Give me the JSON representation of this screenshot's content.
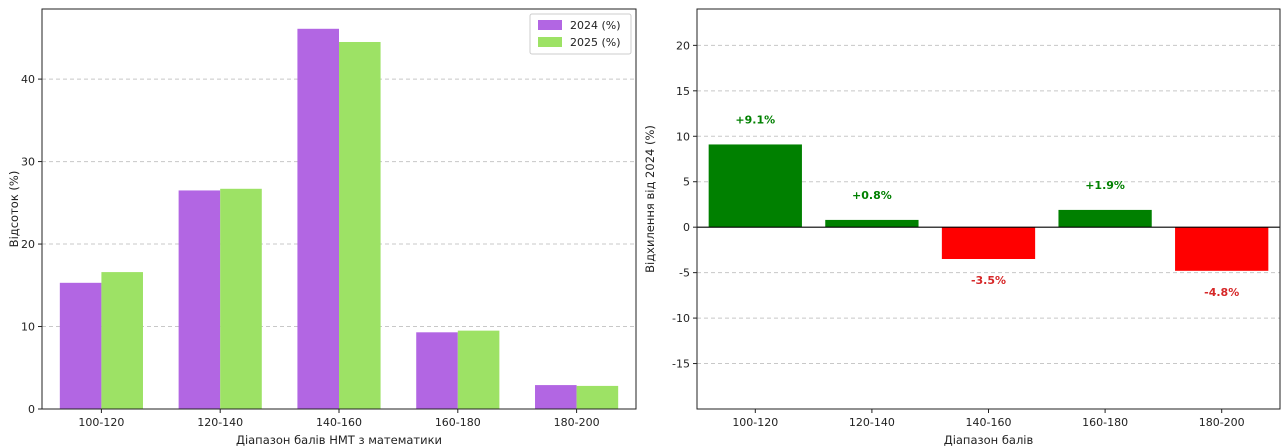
{
  "chart_data": [
    {
      "type": "bar",
      "categories": [
        "100-120",
        "120-140",
        "140-160",
        "160-180",
        "180-200"
      ],
      "series": [
        {
          "name": "2024 (%)",
          "values": [
            15.3,
            26.5,
            46.1,
            9.3,
            2.9
          ],
          "color": "#b266e3"
        },
        {
          "name": "2025 (%)",
          "values": [
            16.6,
            26.7,
            44.5,
            9.5,
            2.8
          ],
          "color": "#9de265"
        }
      ],
      "xlabel": "Діапазон балів НМТ з математики",
      "ylabel": "Відсоток (%)",
      "ylim": [
        0,
        48.5
      ],
      "yticks": [
        0,
        10,
        20,
        30,
        40
      ],
      "grid": true,
      "legend": "top-right"
    },
    {
      "type": "bar",
      "categories": [
        "100-120",
        "120-140",
        "140-160",
        "160-180",
        "180-200"
      ],
      "values": [
        9.1,
        0.8,
        -3.5,
        1.9,
        -4.8
      ],
      "labels": [
        "+9.1%",
        "+0.8%",
        "-3.5%",
        "+1.9%",
        "-4.8%"
      ],
      "colors": {
        "positive": "#008000",
        "negative": "#ff0000",
        "positive_label": "#008000",
        "negative_label": "#d62728"
      },
      "xlabel": "Діапазон балів",
      "ylabel": "Відхилення від 2024 (%)",
      "ylim": [
        -20,
        24
      ],
      "yticks": [
        -15,
        -10,
        -5,
        0,
        5,
        10,
        15,
        20
      ],
      "grid": true
    }
  ]
}
